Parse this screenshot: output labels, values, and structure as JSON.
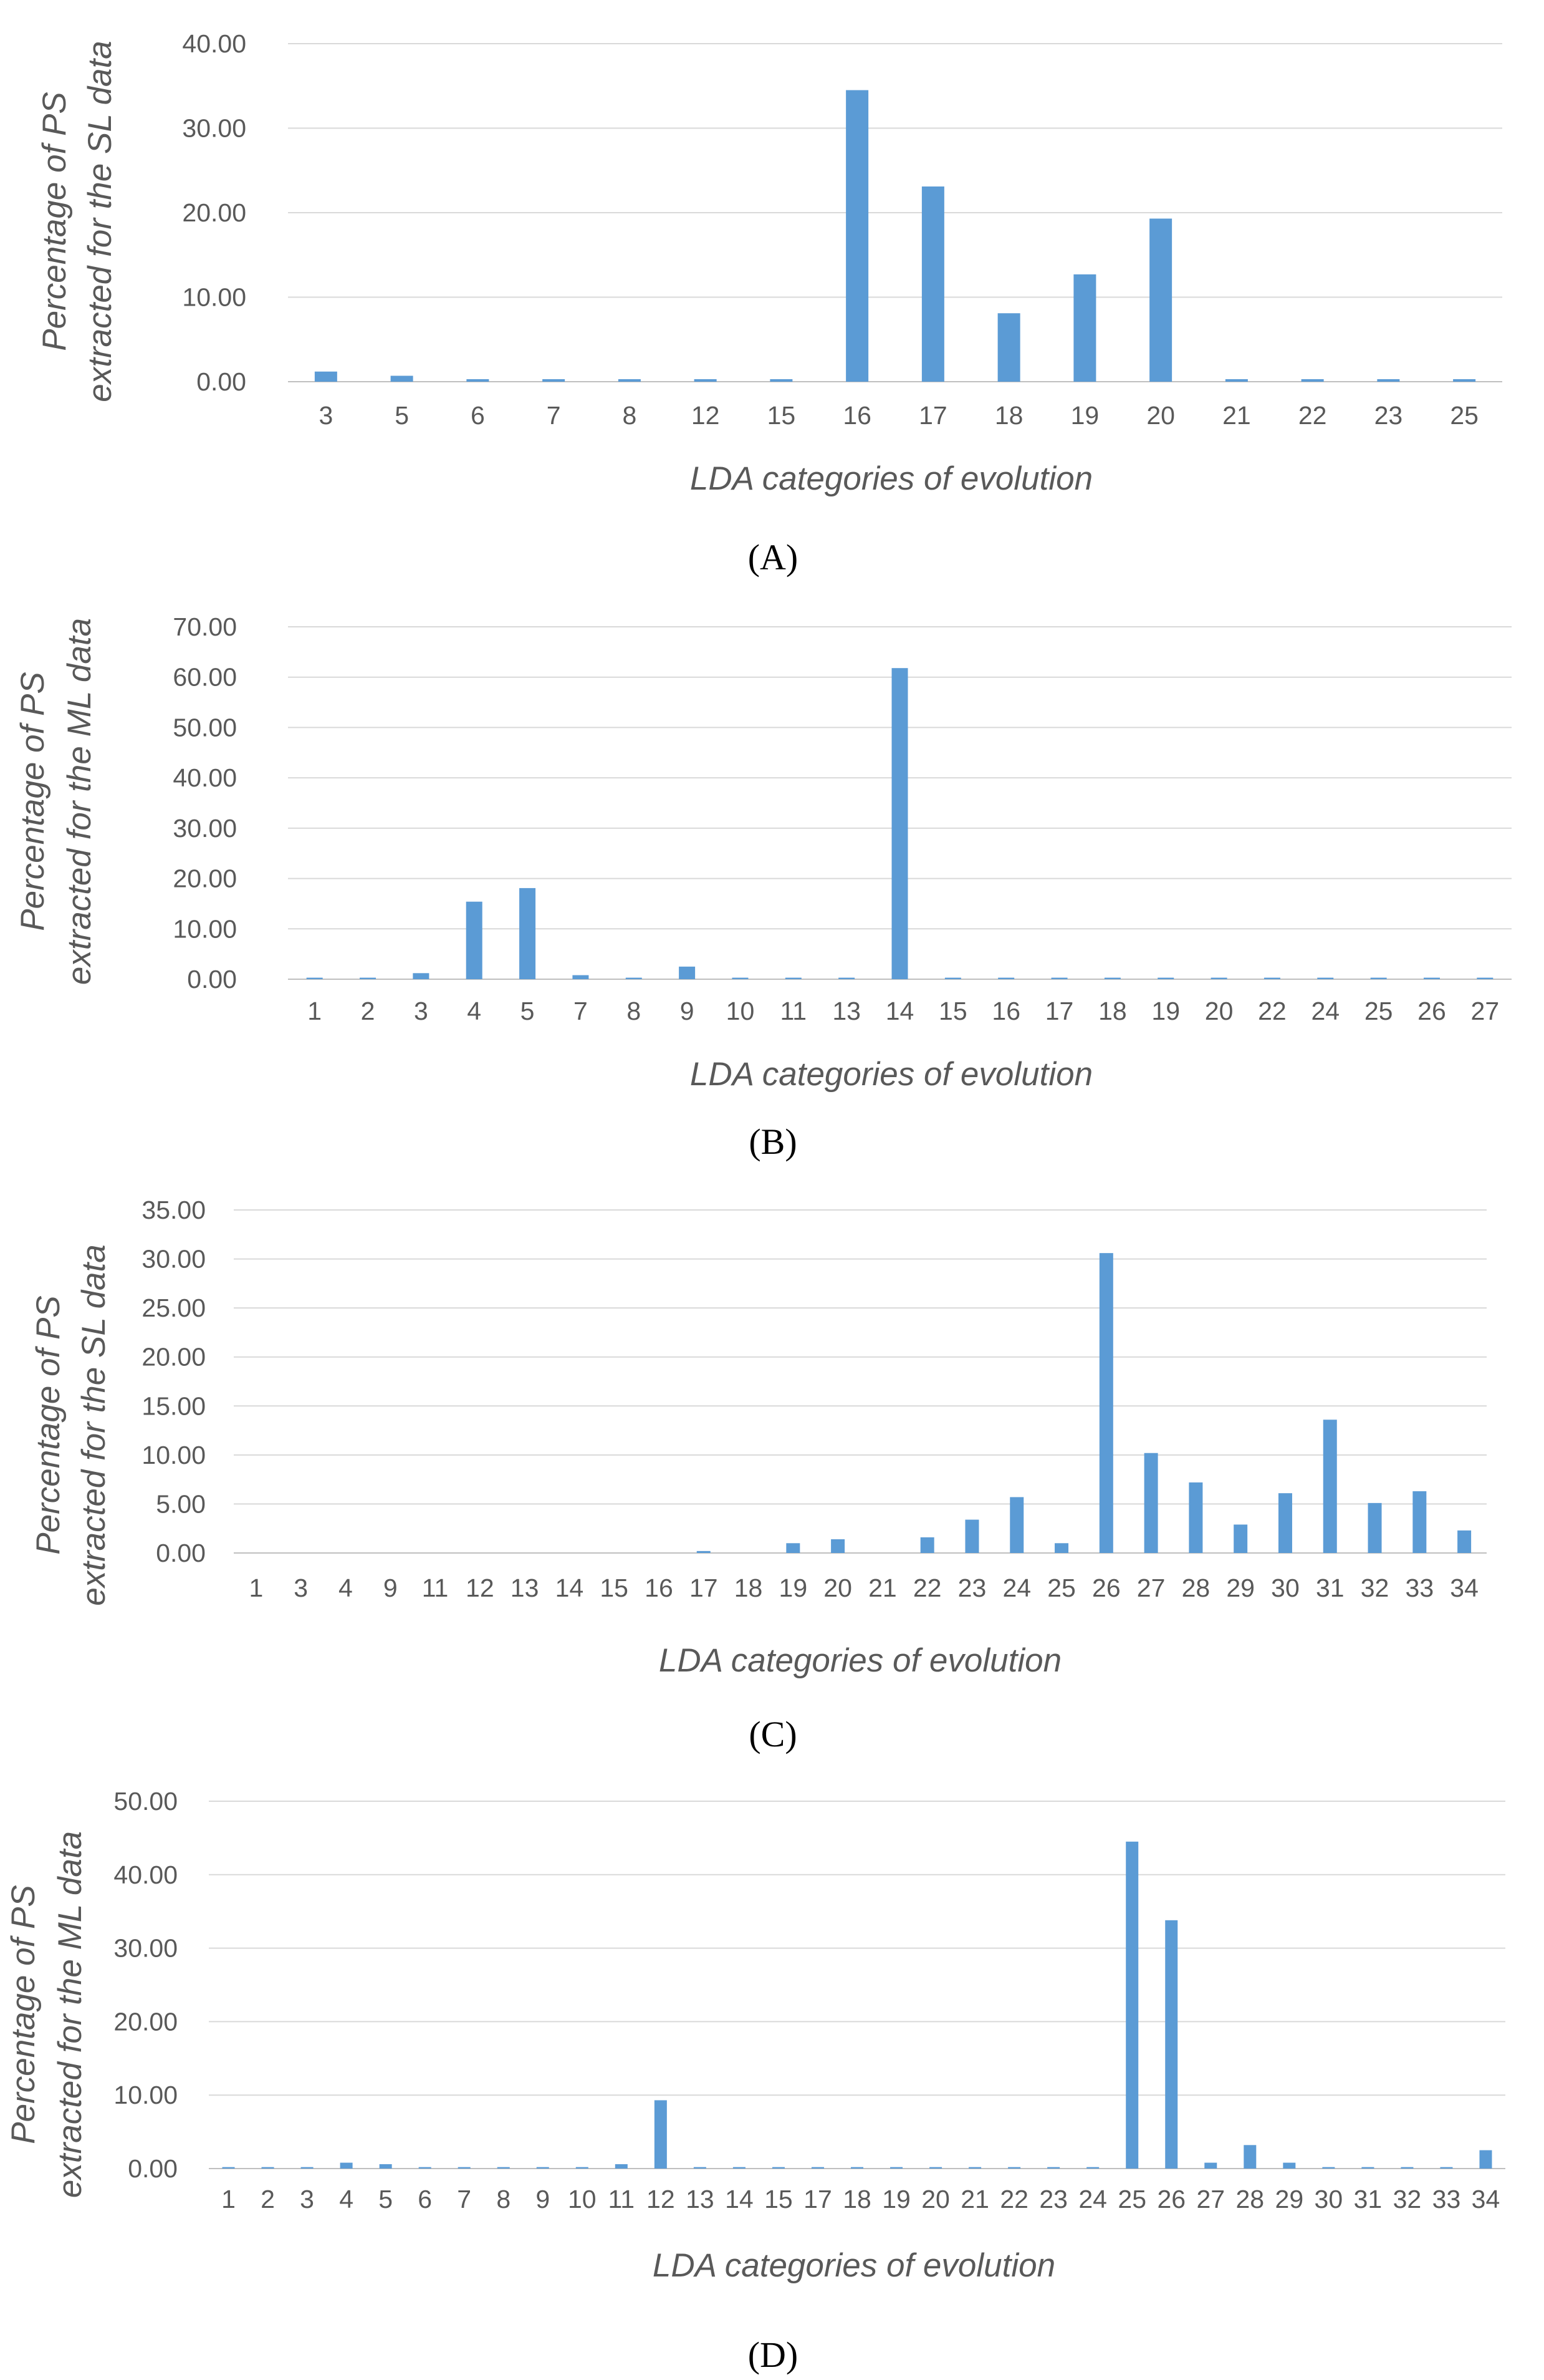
{
  "colors": {
    "bar": "#5b9bd5",
    "grid": "#d9d9d9",
    "axis_text": "#595959"
  },
  "chart_data": [
    {
      "panel": "A",
      "panel_label": "(A)",
      "type": "bar",
      "categories": [
        "3",
        "5",
        "6",
        "7",
        "8",
        "12",
        "15",
        "16",
        "17",
        "18",
        "19",
        "20",
        "21",
        "22",
        "23",
        "25"
      ],
      "values": [
        1.2,
        0.7,
        0.3,
        0.3,
        0.3,
        0.3,
        0.3,
        34.5,
        23.1,
        8.1,
        12.7,
        19.3,
        0.3,
        0.3,
        0.3,
        0.3
      ],
      "yticks": [
        "0.00",
        "10.00",
        "20.00",
        "30.00",
        "40.00"
      ],
      "ylim": [
        0,
        40
      ],
      "xlabel": "LDA categories of evolution",
      "ylabel_line1": "Percentage of PS",
      "ylabel_line2": "extracted for the SL data",
      "grid": true
    },
    {
      "panel": "B",
      "panel_label": "(B)",
      "type": "bar",
      "categories": [
        "1",
        "2",
        "3",
        "4",
        "5",
        "7",
        "8",
        "9",
        "10",
        "11",
        "13",
        "14",
        "15",
        "16",
        "17",
        "18",
        "19",
        "20",
        "22",
        "24",
        "25",
        "26",
        "27"
      ],
      "values": [
        0.3,
        0.3,
        1.2,
        15.4,
        18.1,
        0.8,
        0.3,
        2.5,
        0.3,
        0.3,
        0.3,
        61.8,
        0.3,
        0.3,
        0.3,
        0.3,
        0.3,
        0.3,
        0.3,
        0.3,
        0.3,
        0.3,
        0.3
      ],
      "yticks": [
        "0.00",
        "10.00",
        "20.00",
        "30.00",
        "40.00",
        "50.00",
        "60.00",
        "70.00"
      ],
      "ylim": [
        0,
        70
      ],
      "xlabel": "LDA categories of evolution",
      "ylabel_line1": "Percentage of PS",
      "ylabel_line2": "extracted for the ML data",
      "grid": true
    },
    {
      "panel": "C",
      "panel_label": "(C)",
      "type": "bar",
      "categories": [
        "1",
        "3",
        "4",
        "9",
        "11",
        "12",
        "13",
        "14",
        "15",
        "16",
        "17",
        "18",
        "19",
        "20",
        "21",
        "22",
        "23",
        "24",
        "25",
        "26",
        "27",
        "28",
        "29",
        "30",
        "31",
        "32",
        "33",
        "34"
      ],
      "values": [
        0,
        0,
        0,
        0,
        0,
        0,
        0,
        0,
        0,
        0,
        0.2,
        0,
        1.0,
        1.4,
        0,
        1.6,
        3.4,
        5.7,
        1.0,
        30.6,
        10.2,
        7.2,
        2.9,
        6.1,
        13.6,
        5.1,
        6.3,
        2.3
      ],
      "yticks": [
        "0.00",
        "5.00",
        "10.00",
        "15.00",
        "20.00",
        "25.00",
        "30.00",
        "35.00"
      ],
      "ylim": [
        0,
        35
      ],
      "xlabel": "LDA categories of evolution",
      "ylabel_line1": "Percentage of PS",
      "ylabel_line2": "extracted for the SL data",
      "grid": true
    },
    {
      "panel": "D",
      "panel_label": "(D)",
      "type": "bar",
      "categories": [
        "1",
        "2",
        "3",
        "4",
        "5",
        "6",
        "7",
        "8",
        "9",
        "10",
        "11",
        "12",
        "13",
        "14",
        "15",
        "17",
        "18",
        "19",
        "20",
        "21",
        "22",
        "23",
        "24",
        "25",
        "26",
        "27",
        "28",
        "29",
        "30",
        "31",
        "32",
        "33",
        "34"
      ],
      "values": [
        0.2,
        0.2,
        0.2,
        0.8,
        0.6,
        0.2,
        0.2,
        0.2,
        0.2,
        0.2,
        0.6,
        9.3,
        0.2,
        0.2,
        0.2,
        0.2,
        0.2,
        0.2,
        0.2,
        0.2,
        0.2,
        0.2,
        0.2,
        44.5,
        33.8,
        0.8,
        3.2,
        0.8,
        0.2,
        0.2,
        0.2,
        0.2,
        2.5
      ],
      "yticks": [
        "0.00",
        "10.00",
        "20.00",
        "30.00",
        "40.00",
        "50.00"
      ],
      "ylim": [
        0,
        50
      ],
      "xlabel": "LDA categories of evolution",
      "ylabel_line1": "Percentage of PS",
      "ylabel_line2": "extracted for the ML data",
      "grid": true
    }
  ]
}
